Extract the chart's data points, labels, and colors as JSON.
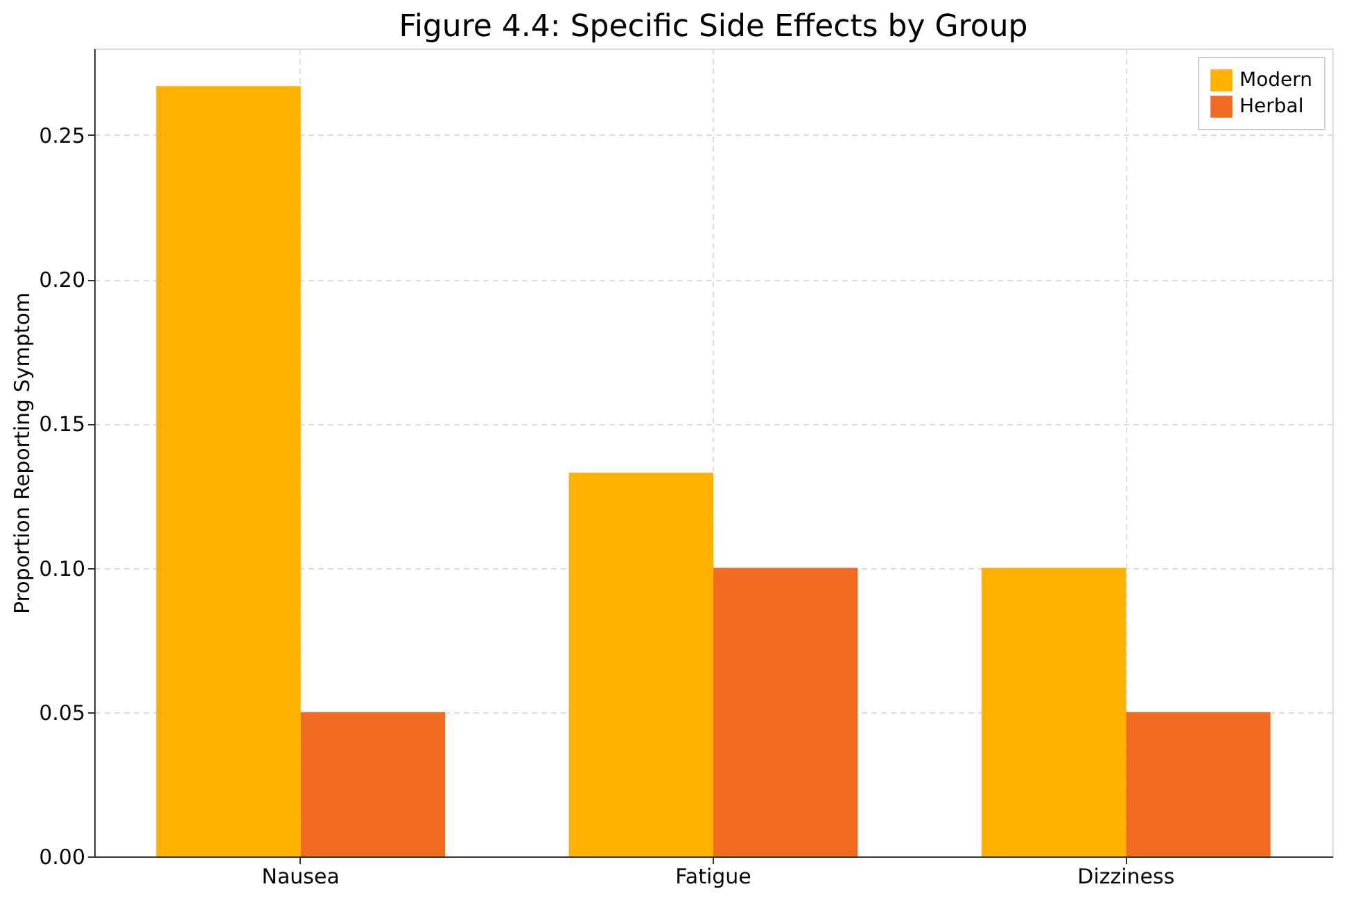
{
  "chart_data": {
    "type": "bar",
    "title": "Figure 4.4: Specific Side Effects by Group",
    "ylabel": "Proportion Reporting Symptom",
    "categories": [
      "Nausea",
      "Fatigue",
      "Dizziness"
    ],
    "series": [
      {
        "name": "Modern",
        "color": "#ffb000",
        "values": [
          0.267,
          0.133,
          0.1
        ]
      },
      {
        "name": "Herbal",
        "color": "#f26b22",
        "values": [
          0.05,
          0.1,
          0.05
        ]
      }
    ],
    "ylim": [
      0,
      0.28
    ],
    "yticks": [
      {
        "value": 0,
        "label": "0.00"
      },
      {
        "value": 0.05,
        "label": "0.05"
      },
      {
        "value": 0.1,
        "label": "0.10"
      },
      {
        "value": 0.15,
        "label": "0.15"
      },
      {
        "value": 0.2,
        "label": "0.20"
      },
      {
        "value": 0.25,
        "label": "0.25"
      }
    ],
    "grid": true,
    "legend": "top right"
  }
}
